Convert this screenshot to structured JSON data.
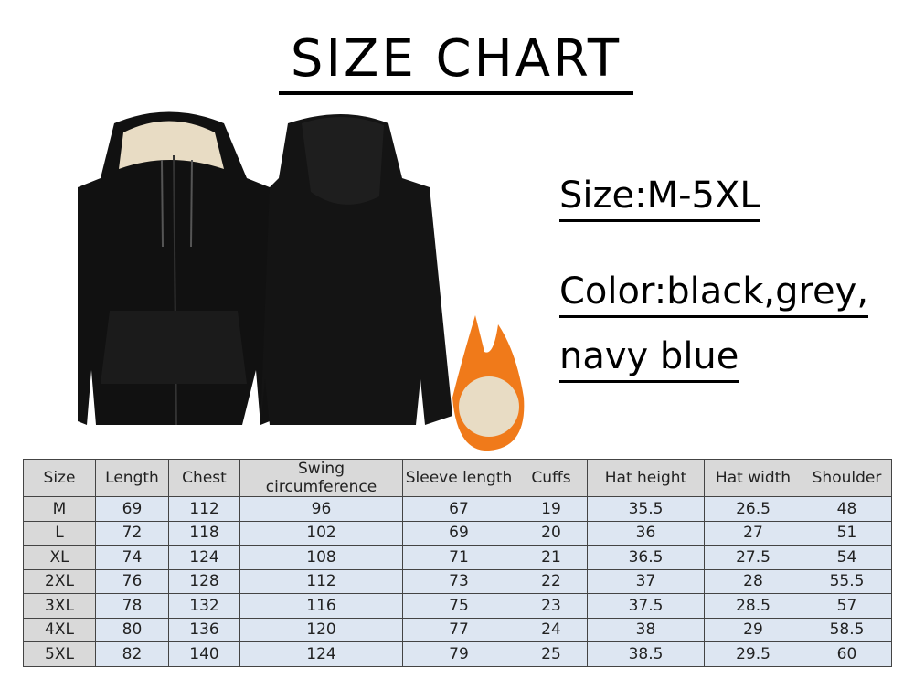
{
  "title": "SIZE CHART",
  "size_info": "Size:M-5XL",
  "color_info_line1": "Color:black,grey,",
  "color_info_line2": "navy blue",
  "colors": {
    "table_header_bg": "#d9d9d9",
    "table_cell_bg": "#dde6f2",
    "hoodie": "#111111",
    "fleece": "#e8dcc4",
    "flame": "#f07a1a"
  },
  "table": {
    "headers": [
      "Size",
      "Length",
      "Chest",
      "Swing circumference",
      "Sleeve length",
      "Cuffs",
      "Hat height",
      "Hat width",
      "Shoulder"
    ],
    "rows": [
      [
        "M",
        "69",
        "112",
        "96",
        "67",
        "19",
        "35.5",
        "26.5",
        "48"
      ],
      [
        "L",
        "72",
        "118",
        "102",
        "69",
        "20",
        "36",
        "27",
        "51"
      ],
      [
        "XL",
        "74",
        "124",
        "108",
        "71",
        "21",
        "36.5",
        "27.5",
        "54"
      ],
      [
        "2XL",
        "76",
        "128",
        "112",
        "73",
        "22",
        "37",
        "28",
        "55.5"
      ],
      [
        "3XL",
        "78",
        "132",
        "116",
        "75",
        "23",
        "37.5",
        "28.5",
        "57"
      ],
      [
        "4XL",
        "80",
        "136",
        "120",
        "77",
        "24",
        "38",
        "29",
        "58.5"
      ],
      [
        "5XL",
        "82",
        "140",
        "124",
        "79",
        "25",
        "38.5",
        "29.5",
        "60"
      ]
    ]
  }
}
